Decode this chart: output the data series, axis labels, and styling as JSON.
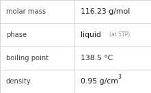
{
  "rows": [
    {
      "label": "molar mass",
      "value": "116.23 g/mol",
      "superscript": null,
      "at_stp": false
    },
    {
      "label": "phase",
      "value": "liquid",
      "superscript": null,
      "at_stp": true
    },
    {
      "label": "boiling point",
      "value": "138.5 °C",
      "superscript": null,
      "at_stp": false
    },
    {
      "label": "density",
      "value": "0.95 g/cm",
      "superscript": "3",
      "at_stp": false
    }
  ],
  "col_split": 0.495,
  "background": "#ffffff",
  "border_color": "#c8c8c8",
  "label_color": "#404040",
  "value_color": "#1a1a1a",
  "at_stp_color": "#909090",
  "label_fontsize": 7.2,
  "value_fontsize": 7.8,
  "at_stp_fontsize": 5.5,
  "super_fontsize": 5.5
}
